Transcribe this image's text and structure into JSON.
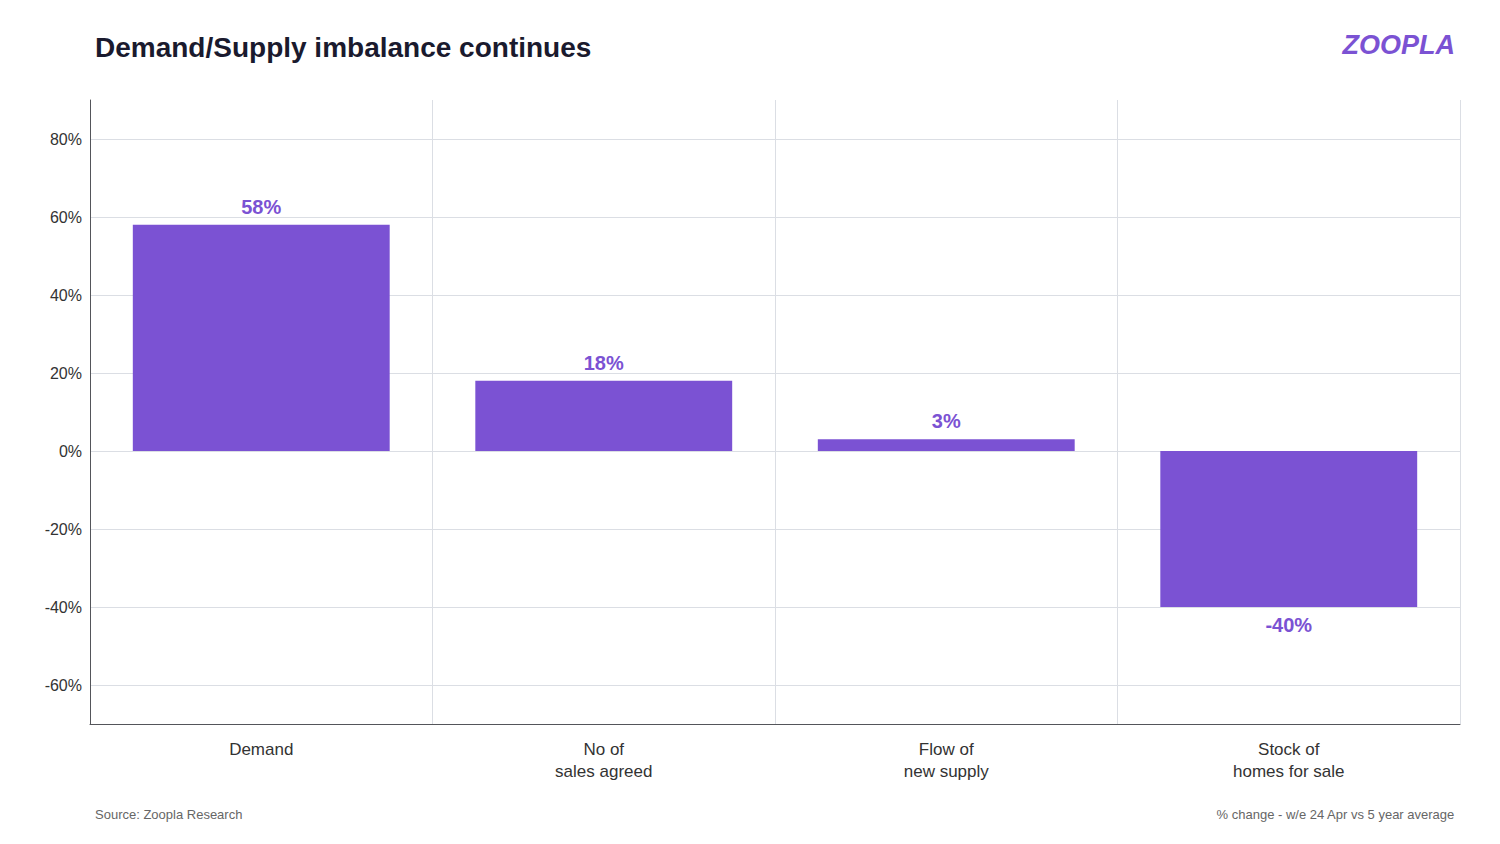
{
  "chart_data": {
    "type": "bar",
    "title": "Demand/Supply imbalance continues",
    "categories": [
      "Demand",
      "No of\nsales agreed",
      "Flow of\nnew supply",
      "Stock of\nhomes for sale"
    ],
    "values": [
      58,
      18,
      3,
      -40
    ],
    "value_labels": [
      "58%",
      "18%",
      "3%",
      "-40%"
    ],
    "data_labels": true,
    "color": "#7B52D3",
    "ylim": [
      -70,
      90
    ],
    "yticks": [
      {
        "value": -60,
        "label": "-60%"
      },
      {
        "value": -40,
        "label": "-40%"
      },
      {
        "value": -20,
        "label": "-20%"
      },
      {
        "value": 0,
        "label": "0%"
      },
      {
        "value": 20,
        "label": "20%"
      },
      {
        "value": 40,
        "label": "40%"
      },
      {
        "value": 60,
        "label": "60%"
      },
      {
        "value": 80,
        "label": "80%"
      }
    ],
    "grid": true,
    "annotations": [
      "ZOOPLA",
      "Source: Zoopla Research",
      "% change - w/e 24 Apr vs 5 year average"
    ]
  }
}
